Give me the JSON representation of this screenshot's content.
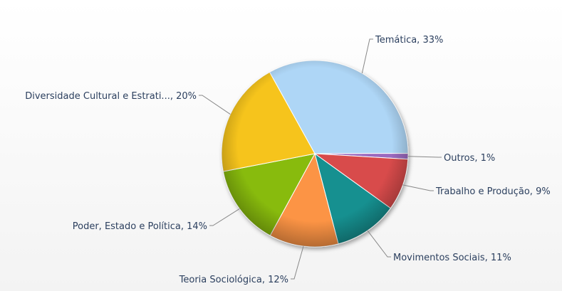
{
  "chart_data": {
    "type": "pie",
    "title": "",
    "slices": [
      {
        "name": "Temática",
        "label": "Temática, 33%",
        "value": 33,
        "color": "#aed6f6"
      },
      {
        "name": "Outros",
        "label": "Outros, 1%",
        "value": 1,
        "color": "#9b6bbf"
      },
      {
        "name": "Trabalho e Produção",
        "label": "Trabalho e Produção, 9%",
        "value": 9,
        "color": "#d84b4b"
      },
      {
        "name": "Movimentos Sociais",
        "label": "Movimentos Sociais, 11%",
        "value": 11,
        "color": "#129090"
      },
      {
        "name": "Teoria Sociológica",
        "label": "Teoria Sociológica, 12%",
        "value": 12,
        "color": "#fc9444"
      },
      {
        "name": "Poder, Estado e Política",
        "label": "Poder, Estado e Política, 14%",
        "value": 14,
        "color": "#88bb0f"
      },
      {
        "name": "Diversidade Cultural e Estrati...",
        "label": "Diversidade Cultural e Estrati..., 20%",
        "value": 20,
        "color": "#f6c41d"
      }
    ]
  }
}
